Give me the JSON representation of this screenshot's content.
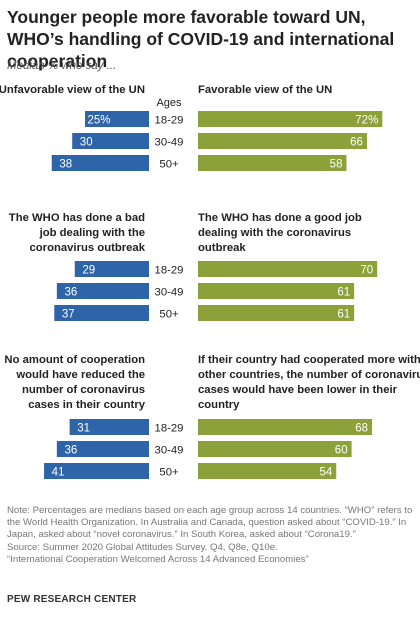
{
  "title": "Younger people more favorable toward UN, WHO’s handling of COVID-19 and international cooperation",
  "subtitle": "Median % who say ...",
  "colors": {
    "left": "#2e64a8",
    "right": "#8ca13a",
    "label": "#ffffff"
  },
  "chart_data": [
    {
      "type": "bar",
      "categories_label": "Ages",
      "categories": [
        "18-29",
        "30-49",
        "50+"
      ],
      "series": [
        {
          "name": "Unfavorable view of the UN",
          "values": [
            25,
            30,
            38
          ],
          "labels": [
            "25%",
            "30",
            "38"
          ]
        },
        {
          "name": "Favorable view of the UN",
          "values": [
            72,
            66,
            58
          ],
          "labels": [
            "72%",
            "66",
            "58"
          ]
        }
      ]
    },
    {
      "type": "bar",
      "categories": [
        "18-29",
        "30-49",
        "50+"
      ],
      "series": [
        {
          "name": "The WHO has done a bad job dealing with the coronavirus outbreak",
          "name_lines": [
            "The WHO has done a bad",
            "job dealing with the",
            "coronavirus outbreak"
          ],
          "values": [
            29,
            36,
            37
          ],
          "labels": [
            "29",
            "36",
            "37"
          ]
        },
        {
          "name": "The WHO has done a good job dealing with the coronavirus outbreak",
          "name_lines": [
            "The WHO has done a good job",
            "dealing with the coronavirus",
            "outbreak"
          ],
          "values": [
            70,
            61,
            61
          ],
          "labels": [
            "70",
            "61",
            "61"
          ]
        }
      ]
    },
    {
      "type": "bar",
      "categories": [
        "18-29",
        "30-49",
        "50+"
      ],
      "series": [
        {
          "name": "No amount of cooperation would have reduced the number of coronavirus cases in their country",
          "name_lines": [
            "No amount of cooperation",
            "would have reduced the",
            "number of coronavirus",
            "cases in their country"
          ],
          "values": [
            31,
            36,
            41
          ],
          "labels": [
            "31",
            "36",
            "41"
          ]
        },
        {
          "name": "If their country had cooperated more with other countries, the number of coronavirus cases would have been lower in their country",
          "name_lines": [
            "If their country had cooperated more with",
            "other countries, the number of coronavirus",
            "cases would have been lower in their",
            "country"
          ],
          "values": [
            68,
            60,
            54
          ],
          "labels": [
            "68",
            "60",
            "54"
          ]
        }
      ]
    }
  ],
  "notes": [
    "Note: Percentages are medians based on each age group across 14 countries. “WHO” refers to the World Health Organization. In Australia and Canada, question asked about “COVID-19.” In Japan, asked about “novel coronavirus.” In South Korea, asked about “Corona19.”",
    "Source: Summer 2020 Global Attitudes Survey. Q4, Q8e, Q10e.",
    "“International Cooperation Welcomed Across 14 Advanced Economies”"
  ],
  "footer": "PEW RESEARCH CENTER"
}
